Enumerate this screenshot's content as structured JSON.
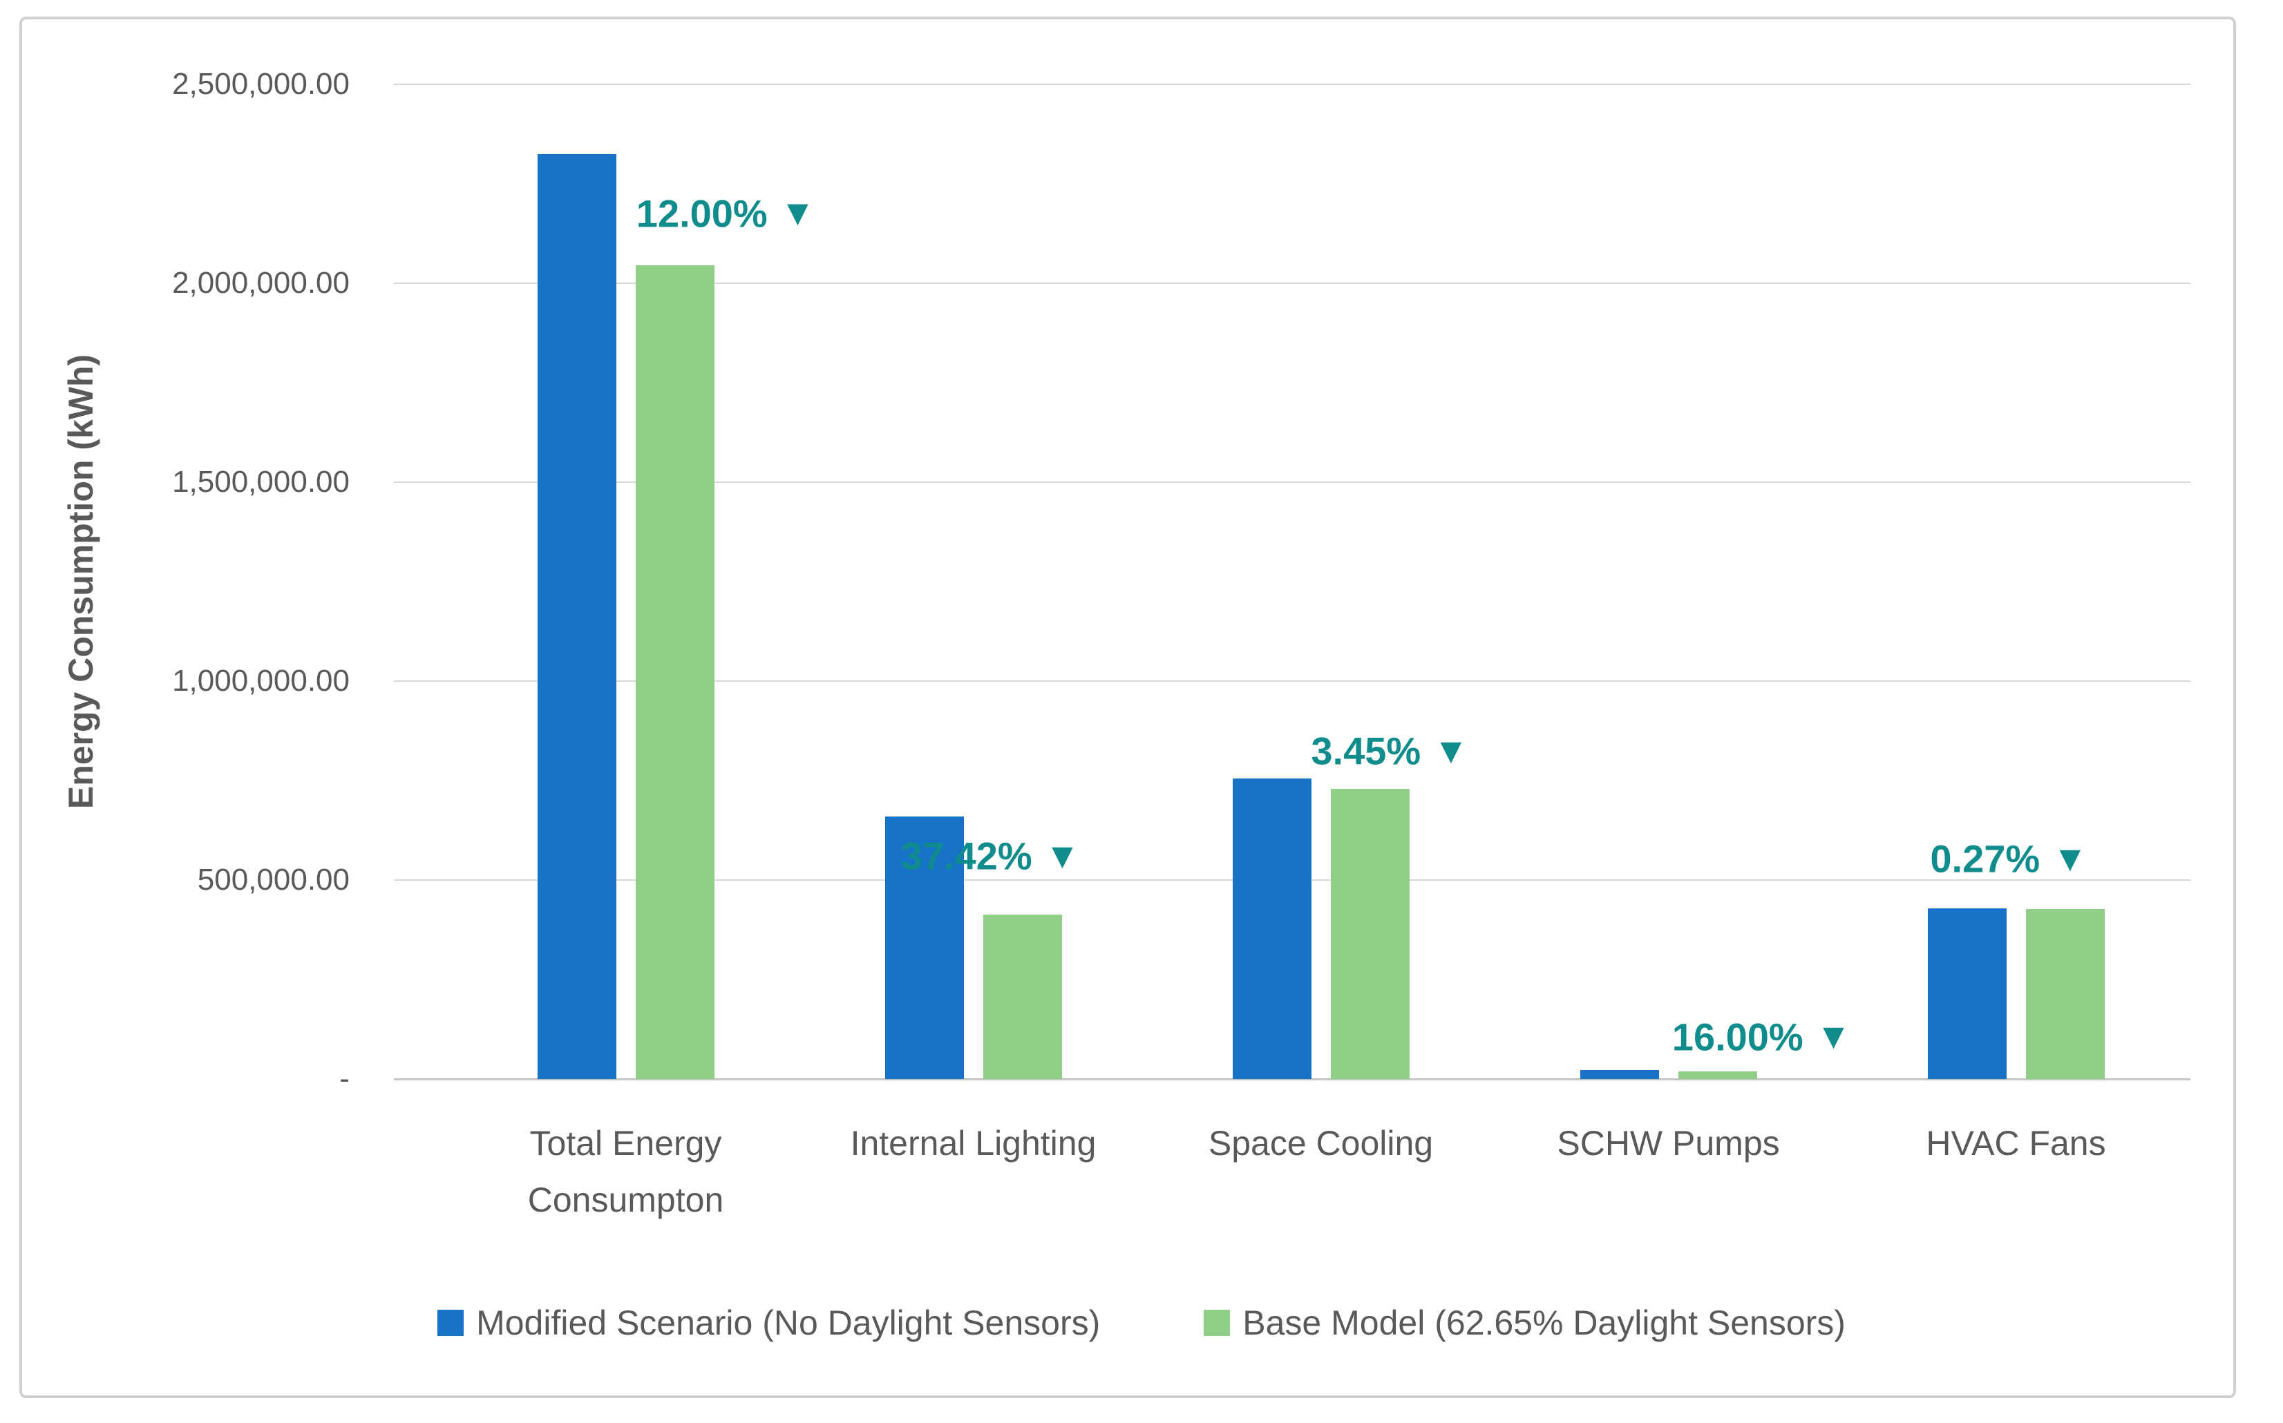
{
  "chart_data": {
    "type": "bar",
    "title": "",
    "xlabel": "",
    "ylabel": "Energy Consumption (kWh)",
    "categories": [
      "Total Energy Consumpton",
      "Internal Lighting",
      "Space Cooling",
      "SCHW Pumps",
      "HVAC Fans"
    ],
    "series": [
      {
        "name": "Modified Scenario (No Daylight Sensors)",
        "color": "#1673C8",
        "values": [
          2325000,
          660000,
          755000,
          23000,
          428000
        ]
      },
      {
        "name": "Base Model (62.65% Daylight Sensors)",
        "color": "#90CE88",
        "values": [
          2046000,
          413000,
          729000,
          19320,
          426840
        ]
      }
    ],
    "annotations": [
      {
        "label": "12.00%",
        "direction": "down"
      },
      {
        "label": "37.42%",
        "direction": "down"
      },
      {
        "label": "3.45%",
        "direction": "down"
      },
      {
        "label": "16.00%",
        "direction": "down"
      },
      {
        "label": "0.27%",
        "direction": "down"
      }
    ],
    "annotation_color": "#118C8C",
    "arrow_glyph": "▼",
    "ylim": [
      0,
      2500000
    ],
    "yticks": [
      {
        "value": 2500000,
        "label": "2,500,000.00"
      },
      {
        "value": 2000000,
        "label": "2,000,000.00"
      },
      {
        "value": 1500000,
        "label": "1,500,000.00"
      },
      {
        "value": 1000000,
        "label": "1,000,000.00"
      },
      {
        "value": 500000,
        "label": "500,000.00"
      },
      {
        "value": 0,
        "label": "-"
      }
    ],
    "grid": true,
    "legend_position": "bottom"
  }
}
